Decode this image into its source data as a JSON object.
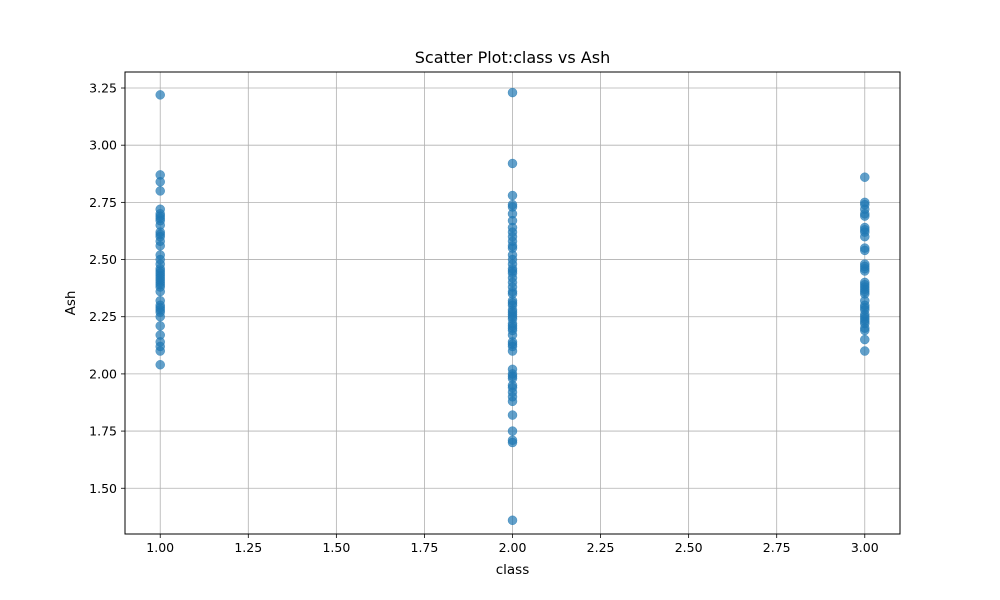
{
  "chart_data": {
    "type": "scatter",
    "title": "Scatter Plot:class vs Ash",
    "xlabel": "class",
    "ylabel": "Ash",
    "xlim": [
      0.9,
      3.1
    ],
    "ylim": [
      1.3,
      3.32
    ],
    "xticks": [
      1.0,
      1.25,
      1.5,
      1.75,
      2.0,
      2.25,
      2.5,
      2.75,
      3.0
    ],
    "xtick_labels": [
      "1.00",
      "1.25",
      "1.50",
      "1.75",
      "2.00",
      "2.25",
      "2.50",
      "2.75",
      "3.00"
    ],
    "yticks": [
      1.5,
      1.75,
      2.0,
      2.25,
      2.5,
      2.75,
      3.0,
      3.25
    ],
    "ytick_labels": [
      "1.50",
      "1.75",
      "2.00",
      "2.25",
      "2.50",
      "2.75",
      "3.00",
      "3.25"
    ],
    "grid": true,
    "marker_color": "#1f77b4",
    "series": [
      {
        "x": [
          1,
          1,
          1,
          1,
          1,
          1,
          1,
          1,
          1,
          1,
          1,
          1,
          1,
          1,
          1,
          1,
          1,
          1,
          1,
          1,
          1,
          1,
          1,
          1,
          1,
          1,
          1,
          1,
          1,
          1,
          1,
          1,
          1,
          1,
          1,
          1,
          1,
          1,
          1,
          1
        ],
        "y": [
          3.22,
          2.87,
          2.84,
          2.8,
          2.72,
          2.7,
          2.68,
          2.65,
          2.62,
          2.61,
          2.6,
          2.56,
          2.52,
          2.5,
          2.48,
          2.46,
          2.45,
          2.43,
          2.42,
          2.41,
          2.4,
          2.38,
          2.36,
          2.32,
          2.3,
          2.28,
          2.27,
          2.25,
          2.21,
          2.17,
          2.14,
          2.12,
          2.1,
          2.04,
          2.69,
          2.58,
          2.39,
          2.44,
          2.29,
          2.67
        ]
      },
      {
        "x": [
          2,
          2,
          2,
          2,
          2,
          2,
          2,
          2,
          2,
          2,
          2,
          2,
          2,
          2,
          2,
          2,
          2,
          2,
          2,
          2,
          2,
          2,
          2,
          2,
          2,
          2,
          2,
          2,
          2,
          2,
          2,
          2,
          2,
          2,
          2,
          2,
          2,
          2,
          2,
          2,
          2,
          2,
          2,
          2,
          2,
          2,
          2,
          2,
          2,
          2,
          2,
          2,
          2,
          2,
          2
        ],
        "y": [
          3.23,
          2.92,
          2.78,
          2.74,
          2.73,
          2.7,
          2.67,
          2.62,
          2.6,
          2.58,
          2.55,
          2.52,
          2.5,
          2.46,
          2.45,
          2.42,
          2.4,
          2.38,
          2.36,
          2.32,
          2.3,
          2.28,
          2.27,
          2.26,
          2.24,
          2.22,
          2.2,
          2.19,
          2.17,
          2.14,
          2.12,
          2.1,
          2.02,
          2.0,
          1.98,
          1.95,
          1.94,
          1.92,
          1.9,
          1.88,
          1.82,
          1.75,
          1.71,
          1.7,
          1.36,
          2.48,
          2.44,
          2.31,
          2.21,
          2.35,
          2.64,
          2.56,
          1.99,
          2.13,
          2.25
        ]
      },
      {
        "x": [
          3,
          3,
          3,
          3,
          3,
          3,
          3,
          3,
          3,
          3,
          3,
          3,
          3,
          3,
          3,
          3,
          3,
          3,
          3,
          3,
          3,
          3,
          3,
          3,
          3,
          3,
          3,
          3,
          3,
          3,
          3,
          3,
          3,
          3,
          3
        ],
        "y": [
          2.86,
          2.75,
          2.72,
          2.7,
          2.69,
          2.64,
          2.62,
          2.6,
          2.54,
          2.48,
          2.46,
          2.45,
          2.4,
          2.38,
          2.37,
          2.36,
          2.35,
          2.32,
          2.3,
          2.28,
          2.26,
          2.25,
          2.23,
          2.22,
          2.2,
          2.19,
          2.15,
          2.1,
          2.74,
          2.63,
          2.55,
          2.47,
          2.39,
          2.29,
          2.24
        ]
      }
    ]
  }
}
